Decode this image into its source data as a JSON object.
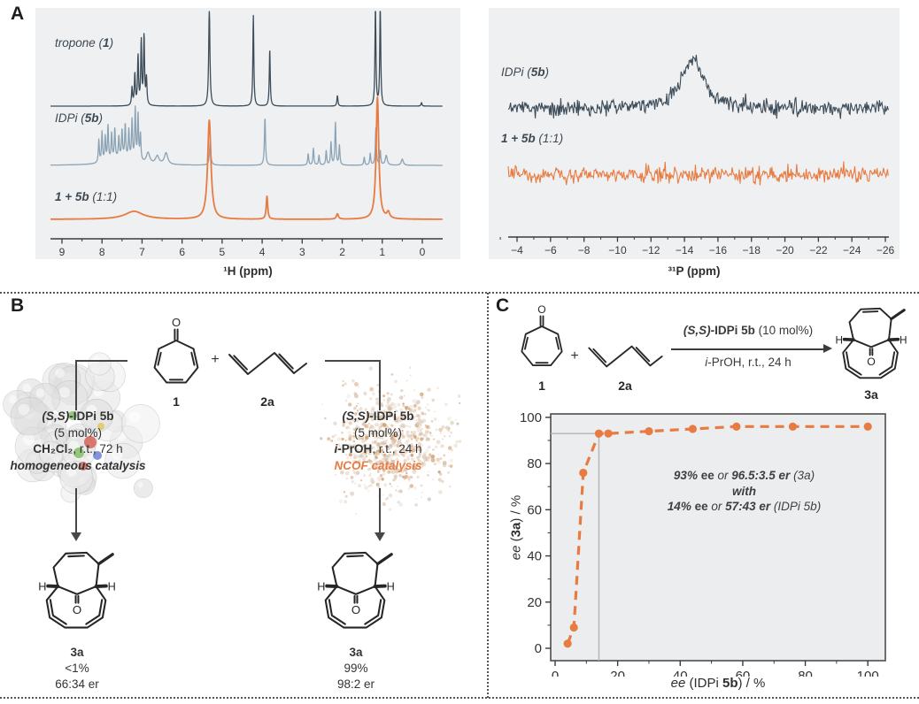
{
  "panels": {
    "a": {
      "label": "A"
    },
    "b": {
      "label": "B",
      "compound1": "1",
      "plus": "+",
      "compound2a": "2a",
      "left": {
        "cat_i": "(S,S)",
        "cat_b": "-IDPi 5b",
        "loading": "(5 mol%)",
        "solvent_b": "CH₂Cl₂",
        "solvent_rest": ", r.t., 72 h",
        "mode": "homogeneous catalysis",
        "product": {
          "id": "3a",
          "yield": "<1%",
          "er": "66:34 er"
        }
      },
      "right": {
        "cat_i": "(S,S)",
        "cat_b": "-IDPi 5b",
        "loading": "(5 mol%)",
        "solvent_i": "i",
        "solvent_b": "-PrOH",
        "solvent_rest": ", r.t., 24 h",
        "mode": "NCOF catalysis",
        "mode_color": "#e87b41",
        "product": {
          "id": "3a",
          "yield": "99%",
          "er": "98:2 er"
        }
      }
    },
    "c": {
      "label": "C",
      "compound1": "1",
      "plus": "+",
      "compound2a": "2a",
      "product_id": "3a",
      "arrow_top_i": "(S,S)",
      "arrow_top_b": "-IDPi 5b",
      "arrow_top_rest": " (10 mol%)",
      "arrow_bottom_i": "i",
      "arrow_bottom_rest": "-PrOH, r.t., 24 h"
    }
  },
  "chart_data": [
    {
      "id": "h1-nmr-stack",
      "type": "line",
      "xlabel": "¹H (ppm)",
      "x_ticks": [
        9,
        8,
        7,
        6,
        5,
        4,
        3,
        2,
        1,
        0
      ],
      "x_range": [
        9.3,
        -0.5
      ],
      "traces": [
        {
          "label_pre": "tropone (",
          "label_bold": "1",
          "label_post": ")",
          "color": "#3d4c59",
          "peaks": [
            [
              7.25,
              20
            ],
            [
              7.18,
              35
            ],
            [
              7.1,
              55
            ],
            [
              7.02,
              72
            ],
            [
              6.95,
              78
            ],
            [
              6.89,
              30
            ],
            [
              5.32,
              112,
              0.018
            ],
            [
              4.22,
              103,
              0.014
            ],
            [
              3.81,
              64,
              0.014
            ],
            [
              2.12,
              12
            ],
            [
              1.17,
              115,
              0.014
            ],
            [
              1.05,
              118,
              0.014
            ],
            [
              0.02,
              4
            ]
          ]
        },
        {
          "label_pre": "IDPi (",
          "label_bold": "5b",
          "label_post": ")",
          "color": "#8ba3b5",
          "peaks": [
            [
              8.08,
              26
            ],
            [
              8.0,
              34
            ],
            [
              7.92,
              28
            ],
            [
              7.85,
              40
            ],
            [
              7.76,
              30
            ],
            [
              7.68,
              34
            ],
            [
              7.58,
              24
            ],
            [
              7.5,
              31
            ],
            [
              7.5,
              8,
              0.35
            ],
            [
              7.42,
              38
            ],
            [
              7.33,
              32
            ],
            [
              7.25,
              44
            ],
            [
              7.17,
              58
            ],
            [
              7.1,
              52
            ],
            [
              7.04,
              30
            ],
            [
              6.85,
              12,
              0.05
            ],
            [
              6.62,
              9,
              0.05
            ],
            [
              6.4,
              13,
              0.05
            ],
            [
              5.3,
              26,
              0.02
            ],
            [
              3.93,
              54,
              0.016
            ],
            [
              2.85,
              13
            ],
            [
              2.72,
              19
            ],
            [
              2.58,
              11
            ],
            [
              2.4,
              16
            ],
            [
              2.28,
              26
            ],
            [
              2.17,
              48
            ],
            [
              2.07,
              22
            ],
            [
              1.45,
              9
            ],
            [
              1.3,
              13
            ],
            [
              1.16,
              42
            ],
            [
              1.05,
              16
            ],
            [
              0.9,
              11,
              0.03
            ],
            [
              0.5,
              7,
              0.03
            ]
          ]
        },
        {
          "label_pre": "",
          "label_bold": "1 + 5b",
          "label_post": " (1:1)",
          "color": "#e87b41",
          "peaks": [
            [
              7.2,
              9,
              0.28
            ],
            [
              5.32,
              112,
              0.05
            ],
            [
              3.88,
              26,
              0.022
            ],
            [
              2.12,
              6,
              0.03
            ],
            [
              1.12,
              138,
              0.04
            ],
            [
              0.85,
              7,
              0.04
            ]
          ]
        }
      ]
    },
    {
      "id": "p31-nmr-stack",
      "type": "line",
      "xlabel": "³¹P (ppm)",
      "x_ticks": [
        -4,
        -6,
        -8,
        -10,
        -12,
        -14,
        -16,
        -18,
        -20,
        -22,
        -24,
        -26
      ],
      "x_range": [
        -3.4,
        -26.3
      ],
      "traces": [
        {
          "label_pre": "IDPi (",
          "label_bold": "5b",
          "label_post": ")",
          "color": "#3d4c59",
          "noise_amp": 9,
          "peaks": [
            [
              -14.5,
              55,
              0.8
            ]
          ]
        },
        {
          "label_pre": "",
          "label_bold": "1 + 5b",
          "label_post": " (1:1)",
          "color": "#e87b41",
          "noise_amp": 9,
          "peaks": []
        }
      ]
    },
    {
      "id": "ee-correlation",
      "type": "scatter",
      "xlabel": "ee (IDPi 5b) / %",
      "ylabel": "ee (3a) / %",
      "xlabel_parts": {
        "i": "ee",
        "mid": " (IDPi ",
        "b": "5b",
        "end": ") / %"
      },
      "ylabel_parts": {
        "i": "ee",
        "mid": " (",
        "b": "3a",
        "end": ") / %"
      },
      "x_ticks": [
        0,
        20,
        40,
        60,
        80,
        100
      ],
      "y_ticks": [
        0,
        20,
        40,
        60,
        80,
        100
      ],
      "xlim": [
        -1.5,
        105
      ],
      "ylim": [
        -5,
        101.5
      ],
      "line_style": "dashed",
      "color": "#e87b41",
      "points": [
        [
          4,
          2
        ],
        [
          6,
          9
        ],
        [
          9,
          76
        ],
        [
          14,
          93
        ],
        [
          17,
          93
        ],
        [
          30,
          94
        ],
        [
          44,
          95
        ],
        [
          58,
          96
        ],
        [
          76,
          96
        ],
        [
          100,
          96
        ]
      ],
      "ref_point": [
        14,
        93
      ],
      "annotation": {
        "l1_bi": "93% ",
        "l1_b": "ee ",
        "l1_i": "or ",
        "l1_bi2": "96.5:3.5 er ",
        "l1_i2": "(3a)",
        "l2": "with",
        "l3_bi": "14% ",
        "l3_b": "ee ",
        "l3_i": "or ",
        "l3_bi2": "57:43 er ",
        "l3_i2": "(IDPi 5b)"
      }
    }
  ]
}
